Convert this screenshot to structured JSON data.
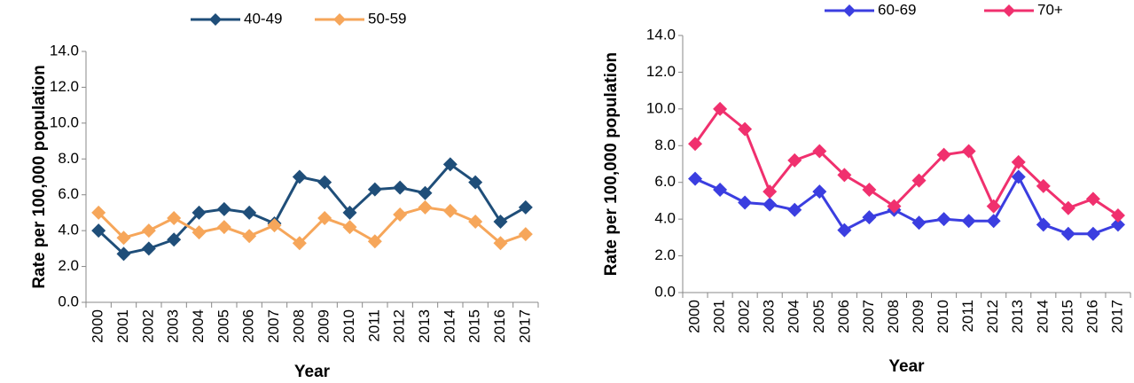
{
  "chart_data": [
    {
      "type": "line",
      "x_label": "Year",
      "y_label": "Rate per 100,000 population",
      "categories": [
        "2000",
        "2001",
        "2002",
        "2003",
        "2004",
        "2005",
        "2006",
        "2007",
        "2008",
        "2009",
        "2010",
        "2011",
        "2012",
        "2013",
        "2014",
        "2015",
        "2016",
        "2017"
      ],
      "series": [
        {
          "name": "40-49",
          "color": "#1f4e79",
          "values": [
            4.0,
            2.7,
            3.0,
            3.5,
            5.0,
            5.2,
            5.0,
            4.4,
            7.0,
            6.7,
            5.0,
            6.3,
            6.4,
            6.1,
            7.7,
            6.7,
            4.5,
            5.3
          ]
        },
        {
          "name": "50-59",
          "color": "#f6a65a",
          "values": [
            5.0,
            3.6,
            4.0,
            4.7,
            3.9,
            4.2,
            3.7,
            4.3,
            3.3,
            4.7,
            4.2,
            3.4,
            4.9,
            5.3,
            5.1,
            4.5,
            3.3,
            3.8
          ]
        }
      ],
      "ylim": [
        0,
        14
      ],
      "yticks": [
        {
          "value": 0,
          "label": "0.0"
        },
        {
          "value": 2,
          "label": "2.0"
        },
        {
          "value": 4,
          "label": "4.0"
        },
        {
          "value": 6,
          "label": "6.0"
        },
        {
          "value": 8,
          "label": "8.0"
        },
        {
          "value": 10,
          "label": "10.0"
        },
        {
          "value": 12,
          "label": "12.0"
        },
        {
          "value": 14,
          "label": "14.0"
        }
      ],
      "grid": false,
      "legend": "top"
    },
    {
      "type": "line",
      "x_label": "Year",
      "y_label": "Rate per 100,000 population",
      "categories": [
        "2000",
        "2001",
        "2002",
        "2003",
        "2004",
        "2005",
        "2006",
        "2007",
        "2008",
        "2009",
        "2010",
        "2011",
        "2012",
        "2013",
        "2014",
        "2015",
        "2016",
        "2017"
      ],
      "series": [
        {
          "name": "60-69",
          "color": "#3b3ee0",
          "values": [
            6.2,
            5.6,
            4.9,
            4.8,
            4.5,
            5.5,
            3.4,
            4.1,
            4.5,
            3.8,
            4.0,
            3.9,
            3.9,
            6.3,
            3.7,
            3.2,
            3.2,
            3.7
          ]
        },
        {
          "name": "70+",
          "color": "#f0306e",
          "values": [
            8.1,
            10.0,
            8.9,
            5.5,
            7.2,
            7.7,
            6.4,
            5.6,
            4.7,
            6.1,
            7.5,
            7.7,
            4.7,
            7.1,
            5.8,
            4.6,
            5.1,
            4.2
          ]
        }
      ],
      "ylim": [
        0,
        14
      ],
      "yticks": [
        {
          "value": 0,
          "label": "0.0"
        },
        {
          "value": 2,
          "label": "2.0"
        },
        {
          "value": 4,
          "label": "4.0"
        },
        {
          "value": 6,
          "label": "6.0"
        },
        {
          "value": 8,
          "label": "8.0"
        },
        {
          "value": 10,
          "label": "10.0"
        },
        {
          "value": 12,
          "label": "12.0"
        },
        {
          "value": 14,
          "label": "14.0"
        }
      ],
      "grid": false,
      "legend": "top"
    }
  ]
}
